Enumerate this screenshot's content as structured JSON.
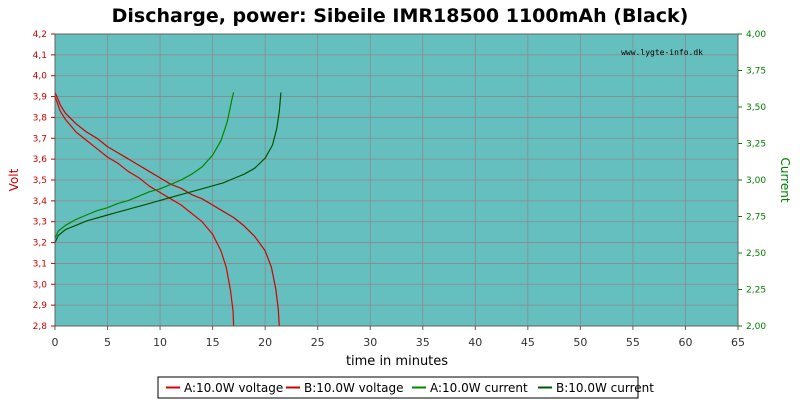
{
  "chart_data": {
    "type": "line",
    "title": "Discharge, power: Sibeile IMR18500 1100mAh (Black)",
    "watermark": "www.lygte-info.dk",
    "xlabel": "time in minutes",
    "ylabel_left": "Volt",
    "ylabel_right": "Current",
    "xlim": [
      0,
      65
    ],
    "ylim_left": [
      2.8,
      4.2
    ],
    "ylim_right": [
      2.0,
      4.0
    ],
    "xticks": [
      "0",
      "5",
      "10",
      "15",
      "20",
      "25",
      "30",
      "35",
      "40",
      "45",
      "50",
      "55",
      "60",
      "65"
    ],
    "yticks_left": [
      "2,8",
      "2,9",
      "3,0",
      "3,1",
      "3,2",
      "3,3",
      "3,4",
      "3,5",
      "3,6",
      "3,7",
      "3,8",
      "3,9",
      "4,0",
      "4,1",
      "4,2"
    ],
    "yticks_right": [
      "2,00",
      "2,25",
      "2,50",
      "2,75",
      "3,00",
      "3,25",
      "3,50",
      "3,75",
      "4,00"
    ],
    "grid": true,
    "legend_position": "bottom",
    "colors": {
      "plot_bg": "#66bfbf",
      "voltage_line": "#cc0000",
      "current_line": "#006600",
      "left_axis": "#cc0000",
      "right_axis": "#008000",
      "grid": "#8a8a8a"
    },
    "series": [
      {
        "name": "A:10.0W voltage",
        "axis": "left",
        "color": "#dd0000",
        "points": [
          [
            0,
            3.9
          ],
          [
            0.5,
            3.83
          ],
          [
            1,
            3.79
          ],
          [
            2,
            3.73
          ],
          [
            3,
            3.69
          ],
          [
            4,
            3.65
          ],
          [
            5,
            3.61
          ],
          [
            6,
            3.58
          ],
          [
            7,
            3.54
          ],
          [
            8,
            3.51
          ],
          [
            9,
            3.47
          ],
          [
            10,
            3.44
          ],
          [
            11,
            3.41
          ],
          [
            12,
            3.38
          ],
          [
            13,
            3.34
          ],
          [
            14,
            3.3
          ],
          [
            15,
            3.24
          ],
          [
            15.8,
            3.16
          ],
          [
            16.3,
            3.08
          ],
          [
            16.7,
            2.97
          ],
          [
            16.95,
            2.87
          ],
          [
            17,
            2.8
          ]
        ]
      },
      {
        "name": "B:10.0W voltage",
        "axis": "left",
        "color": "#cc0000",
        "points": [
          [
            0,
            3.92
          ],
          [
            0.5,
            3.86
          ],
          [
            1,
            3.82
          ],
          [
            2,
            3.77
          ],
          [
            3,
            3.73
          ],
          [
            4,
            3.7
          ],
          [
            5,
            3.66
          ],
          [
            6,
            3.63
          ],
          [
            7,
            3.6
          ],
          [
            8,
            3.57
          ],
          [
            9,
            3.54
          ],
          [
            10,
            3.51
          ],
          [
            11,
            3.48
          ],
          [
            12,
            3.46
          ],
          [
            13,
            3.43
          ],
          [
            14,
            3.41
          ],
          [
            15,
            3.38
          ],
          [
            16,
            3.35
          ],
          [
            17,
            3.32
          ],
          [
            18,
            3.28
          ],
          [
            19,
            3.23
          ],
          [
            20,
            3.16
          ],
          [
            20.6,
            3.08
          ],
          [
            21,
            2.98
          ],
          [
            21.25,
            2.88
          ],
          [
            21.35,
            2.8
          ]
        ]
      },
      {
        "name": "A:10.0W current",
        "axis": "right",
        "color": "#008800",
        "points": [
          [
            0,
            2.6
          ],
          [
            0.3,
            2.65
          ],
          [
            1,
            2.69
          ],
          [
            2,
            2.73
          ],
          [
            3,
            2.76
          ],
          [
            4,
            2.79
          ],
          [
            5,
            2.81
          ],
          [
            6,
            2.84
          ],
          [
            7,
            2.86
          ],
          [
            8,
            2.89
          ],
          [
            9,
            2.92
          ],
          [
            10,
            2.94
          ],
          [
            11,
            2.97
          ],
          [
            12,
            3.0
          ],
          [
            13,
            3.04
          ],
          [
            14,
            3.09
          ],
          [
            15,
            3.17
          ],
          [
            15.8,
            3.27
          ],
          [
            16.4,
            3.4
          ],
          [
            16.8,
            3.54
          ],
          [
            17,
            3.6
          ]
        ]
      },
      {
        "name": "B:10.0W current",
        "axis": "right",
        "color": "#005500",
        "points": [
          [
            0,
            2.57
          ],
          [
            0.3,
            2.62
          ],
          [
            1,
            2.66
          ],
          [
            2,
            2.69
          ],
          [
            3,
            2.72
          ],
          [
            4,
            2.74
          ],
          [
            5,
            2.76
          ],
          [
            6,
            2.78
          ],
          [
            7,
            2.8
          ],
          [
            8,
            2.82
          ],
          [
            9,
            2.84
          ],
          [
            10,
            2.86
          ],
          [
            11,
            2.88
          ],
          [
            12,
            2.9
          ],
          [
            13,
            2.92
          ],
          [
            14,
            2.94
          ],
          [
            15,
            2.96
          ],
          [
            16,
            2.98
          ],
          [
            17,
            3.01
          ],
          [
            18,
            3.04
          ],
          [
            19,
            3.08
          ],
          [
            20,
            3.15
          ],
          [
            20.7,
            3.24
          ],
          [
            21.1,
            3.35
          ],
          [
            21.35,
            3.47
          ],
          [
            21.5,
            3.6
          ]
        ]
      }
    ]
  }
}
